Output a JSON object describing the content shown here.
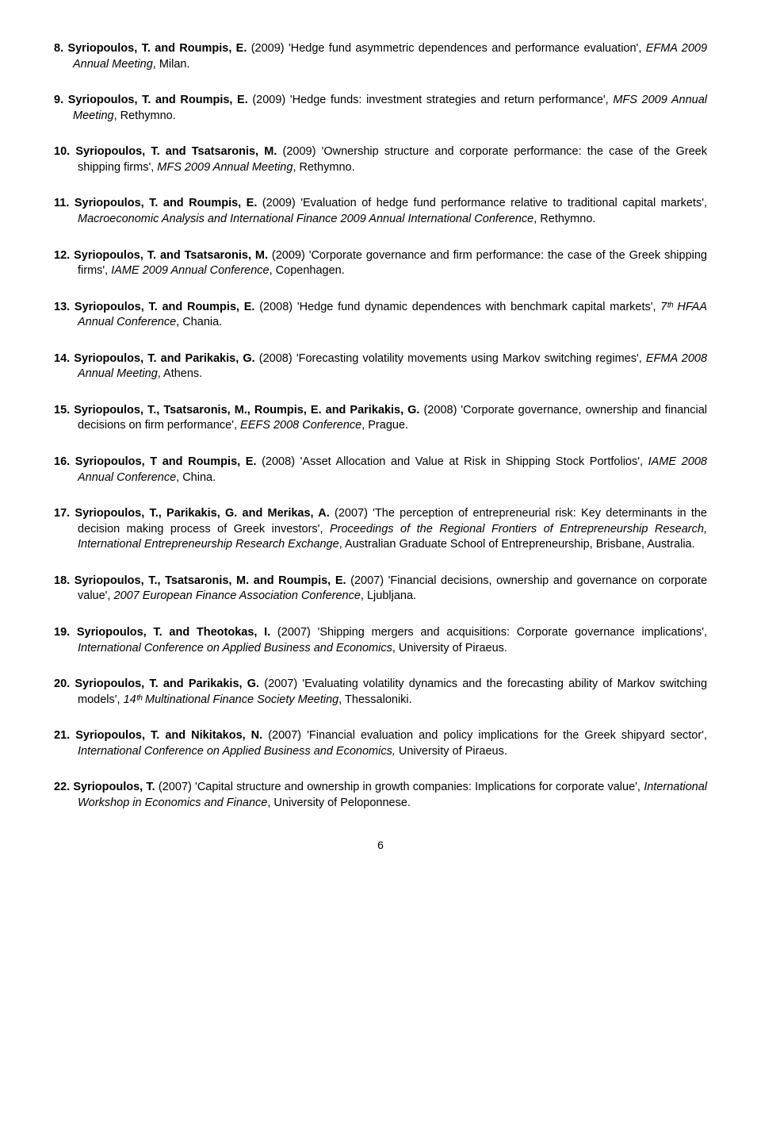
{
  "entries": [
    {
      "num": "8.",
      "authors": "Syriopoulos, T. and Roumpis, E.",
      "year_title": " (2009) 'Hedge fund asymmetric dependences and performance evaluation', ",
      "venue": "EFMA 2009 Annual Meeting",
      "tail": ", Milan."
    },
    {
      "num": "9.",
      "authors": "Syriopoulos, T. and Roumpis, E.",
      "year_title": " (2009) 'Hedge funds: investment strategies and return performance', ",
      "venue": "MFS 2009 Annual Meeting",
      "tail": ", Rethymno."
    },
    {
      "num": "10.",
      "authors": "Syriopoulos, T. and Tsatsaronis, M.",
      "year_title": " (2009) 'Ownership structure and corporate performance: the case of the Greek shipping firms', ",
      "venue": "MFS 2009 Annual Meeting",
      "tail": ", Rethymno."
    },
    {
      "num": "11.",
      "authors": "Syriopoulos, T. and Roumpis, E.",
      "year_title": " (2009) 'Evaluation of hedge fund performance relative to traditional capital markets', ",
      "venue": "Macroeconomic Analysis and International Finance 2009 Annual International Conference",
      "tail": ", Rethymno."
    },
    {
      "num": "12.",
      "authors": "Syriopoulos, T. and Tsatsaronis, M.",
      "year_title": " (2009) 'Corporate governance and firm performance: the case of the Greek shipping firms', ",
      "venue": "IAME 2009 Annual Conference",
      "tail": ", Copenhagen."
    },
    {
      "num": "13.",
      "authors": "Syriopoulos, T. and Roumpis, E.",
      "year_title": " (2008) 'Hedge fund dynamic dependences with benchmark capital markets', ",
      "venue": "7ᵗʰ HFAA Annual Conference",
      "tail": ", Chania."
    },
    {
      "num": "14.",
      "authors": "Syriopoulos, T. and Parikakis, G.",
      "year_title": " (2008) 'Forecasting volatility movements using Markov switching regimes', ",
      "venue": "EFMA 2008 Annual Meeting",
      "tail": ", Athens."
    },
    {
      "num": "15.",
      "authors": "Syriopoulos, T., Tsatsaronis, M., Roumpis, E. and Parikakis, G.",
      "year_title": " (2008) 'Corporate governance, ownership and financial decisions on firm performance', ",
      "venue": "EEFS 2008 Conference",
      "tail": ", Prague."
    },
    {
      "num": "16.",
      "authors": "Syriopoulos, T and Roumpis, E.",
      "year_title": " (2008) 'Asset Allocation and Value at Risk in Shipping Stock Portfolios', ",
      "venue": "IAME 2008 Annual Conference",
      "tail": ", China."
    },
    {
      "num": "17.",
      "authors": "Syriopoulos, T., Parikakis, G. and Merikas, A.",
      "year_title": " (2007) 'The perception of entrepreneurial risk: Key determinants in the decision making process of Greek investors', ",
      "venue": "Proceedings of the Regional Frontiers of Entrepreneurship Research, International Entrepreneurship Research Exchange",
      "tail": ", Australian Graduate School of Entrepreneurship, Brisbane, Australia."
    },
    {
      "num": "18.",
      "authors": "Syriopoulos, T., Tsatsaronis, M. and Roumpis, E.",
      "year_title": " (2007) 'Financial decisions, ownership and governance on corporate value', ",
      "venue": "2007 European Finance Association Conference",
      "tail": ", Ljubljana."
    },
    {
      "num": "19.",
      "authors": "Syriopoulos, T. and Theotokas, I.",
      "year_title": " (2007) 'Shipping mergers and acquisitions: Corporate governance implications', ",
      "venue": "International Conference on Applied Business and Economics",
      "tail": ", University of Piraeus."
    },
    {
      "num": "20.",
      "authors": "Syriopoulos, T. and Parikakis, G.",
      "year_title": " (2007) 'Evaluating volatility dynamics and the forecasting ability of Markov switching models', ",
      "venue": "14ᵗʰ Multinational Finance Society Meeting",
      "tail": ", Thessaloniki."
    },
    {
      "num": "21.",
      "authors": "Syriopoulos, T. and Nikitakos, N.",
      "year_title": " (2007) 'Financial evaluation and policy implications for the Greek shipyard sector', ",
      "venue": "International Conference on Applied Business and Economics,",
      "tail": " University of Piraeus."
    },
    {
      "num": "22.",
      "authors": "Syriopoulos, T.",
      "year_title": " (2007) 'Capital structure and ownership in growth companies: Implications for corporate value', ",
      "venue": "International Workshop in Economics and Finance",
      "tail": ", University of Peloponnese."
    }
  ],
  "page_number": "6"
}
